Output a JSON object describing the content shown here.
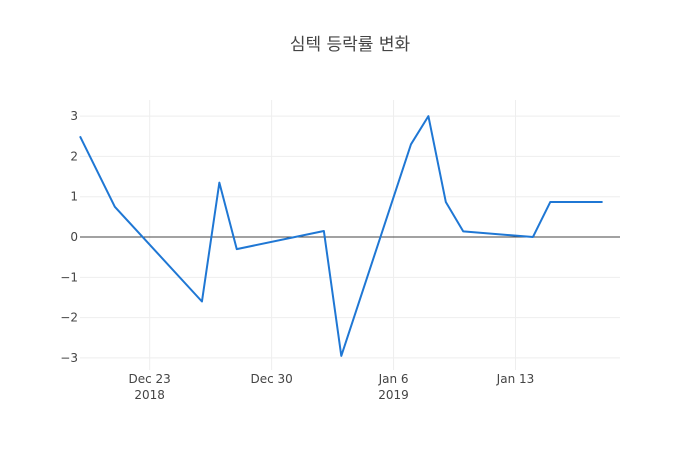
{
  "chart_data": {
    "type": "line",
    "title": "심텍 등락률 변화",
    "xlabel": "",
    "ylabel": "",
    "x_range": [
      "2018-12-19",
      "2019-01-19"
    ],
    "ylim": [
      -3.3,
      3.4
    ],
    "y_ticks": [
      -3,
      -2,
      -1,
      0,
      1,
      2,
      3
    ],
    "y_tick_labels": [
      "−3",
      "−2",
      "−1",
      "0",
      "1",
      "2",
      "3"
    ],
    "x_ticks": [
      {
        "date": "2018-12-23",
        "label": "Dec 23",
        "sublabel": "2018"
      },
      {
        "date": "2018-12-30",
        "label": "Dec 30",
        "sublabel": ""
      },
      {
        "date": "2019-01-06",
        "label": "Jan 6",
        "sublabel": "2019"
      },
      {
        "date": "2019-01-13",
        "label": "Jan 13",
        "sublabel": ""
      }
    ],
    "zero_line": true,
    "grid": true,
    "series": [
      {
        "color": "#1f77d4",
        "points": [
          {
            "x": "2018-12-19",
            "y": 2.5
          },
          {
            "x": "2018-12-21",
            "y": 0.75
          },
          {
            "x": "2018-12-26",
            "y": -1.6
          },
          {
            "x": "2018-12-27",
            "y": 1.35
          },
          {
            "x": "2018-12-28",
            "y": -0.3
          },
          {
            "x": "2019-01-02",
            "y": 0.15
          },
          {
            "x": "2019-01-03",
            "y": -2.95
          },
          {
            "x": "2019-01-07",
            "y": 2.3
          },
          {
            "x": "2019-01-08",
            "y": 3.0
          },
          {
            "x": "2019-01-09",
            "y": 0.87
          },
          {
            "x": "2019-01-10",
            "y": 0.14
          },
          {
            "x": "2019-01-14",
            "y": 0.0
          },
          {
            "x": "2019-01-15",
            "y": 0.87
          },
          {
            "x": "2019-01-18",
            "y": 0.87
          }
        ]
      }
    ]
  }
}
